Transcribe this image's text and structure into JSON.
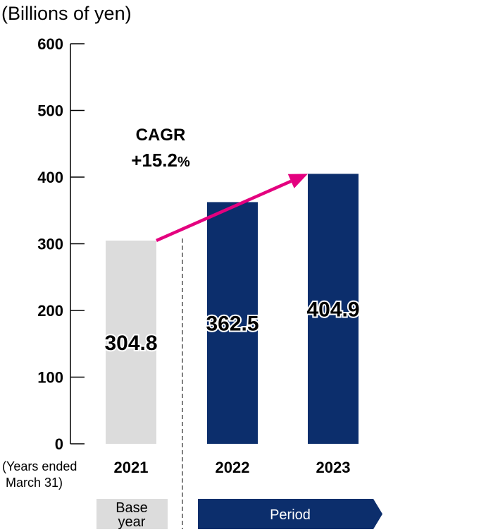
{
  "chart_data": {
    "type": "bar",
    "unit_label": "(Billions of yen)",
    "categories": [
      "2021",
      "2022",
      "2023"
    ],
    "values": [
      304.8,
      362.5,
      404.9
    ],
    "value_labels": [
      "304.8",
      "362.5",
      "404.9"
    ],
    "ylim": [
      0,
      600
    ],
    "yticks": [
      0,
      100,
      200,
      300,
      400,
      500,
      600
    ],
    "x_note_line1": "(Years ended",
    "x_note_line2": "March 31)",
    "bar_colors": [
      "#dcdcdc",
      "#0c2e6c",
      "#0c2e6c"
    ],
    "annotation": {
      "line1": "CAGR",
      "value": "+15.2",
      "suffix": "%",
      "arrow_color": "#e4007f"
    },
    "base_label_line1": "Base",
    "base_label_line2": "year",
    "period_label": "Period",
    "grid": false
  }
}
